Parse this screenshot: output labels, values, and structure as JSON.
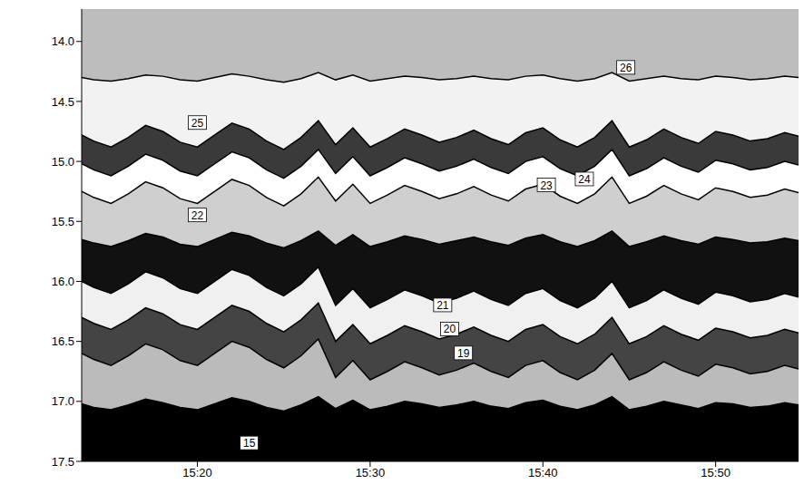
{
  "chart_data": {
    "type": "area",
    "x": [
      913.3,
      914,
      915,
      916,
      917,
      918,
      919,
      920,
      921,
      922,
      923,
      924,
      925,
      926,
      927,
      928,
      929,
      930,
      931,
      932,
      933,
      934,
      935,
      936,
      937,
      938,
      939,
      940,
      941,
      942,
      943,
      944,
      945,
      946,
      947,
      948,
      949,
      950,
      951,
      952,
      953,
      954,
      954.8
    ],
    "xlim": [
      913.3,
      954.8
    ],
    "xticks": [
      {
        "value": 920,
        "label": "15:20"
      },
      {
        "value": 930,
        "label": "15:30"
      },
      {
        "value": 940,
        "label": "15:40"
      },
      {
        "value": 950,
        "label": "15:50"
      }
    ],
    "ylim": [
      13.73,
      17.5
    ],
    "yticks": [
      {
        "value": 14,
        "label": "14.0"
      },
      14.5,
      {
        "value": 15,
        "label": "15.0"
      },
      15.5,
      {
        "value": 16,
        "label": "16.0"
      },
      16.5,
      {
        "value": 17,
        "label": "17.0"
      },
      17.5
    ],
    "series": [
      {
        "name": "26",
        "color": "#f2f2f2",
        "values": [
          14.3,
          14.32,
          14.33,
          14.31,
          14.28,
          14.29,
          14.32,
          14.33,
          14.3,
          14.27,
          14.29,
          14.32,
          14.34,
          14.31,
          14.26,
          14.32,
          14.28,
          14.33,
          14.31,
          14.29,
          14.3,
          14.32,
          14.31,
          14.29,
          14.31,
          14.32,
          14.29,
          14.28,
          14.31,
          14.33,
          14.31,
          14.26,
          14.33,
          14.31,
          14.29,
          14.31,
          14.32,
          14.29,
          14.3,
          14.32,
          14.31,
          14.29,
          14.3
        ]
      },
      {
        "name": "25",
        "color": "#3a3a3a",
        "values": [
          14.78,
          14.83,
          14.88,
          14.8,
          14.7,
          14.75,
          14.84,
          14.88,
          14.78,
          14.68,
          14.73,
          14.83,
          14.9,
          14.8,
          14.66,
          14.86,
          14.72,
          14.88,
          14.81,
          14.73,
          14.78,
          14.84,
          14.8,
          14.74,
          14.81,
          14.86,
          14.76,
          14.72,
          14.82,
          14.88,
          14.8,
          14.66,
          14.88,
          14.82,
          14.73,
          14.8,
          14.85,
          14.75,
          14.78,
          14.83,
          14.81,
          14.76,
          14.79
        ]
      },
      {
        "name": "24",
        "color": "#ffffff",
        "values": [
          15.02,
          15.07,
          15.12,
          15.04,
          14.94,
          14.99,
          15.08,
          15.12,
          15.02,
          14.92,
          14.97,
          15.07,
          15.14,
          15.04,
          14.9,
          15.1,
          14.96,
          15.12,
          15.05,
          14.97,
          15.02,
          15.08,
          15.04,
          14.98,
          15.05,
          15.1,
          15.0,
          14.96,
          15.06,
          15.12,
          15.04,
          14.9,
          15.12,
          15.06,
          14.97,
          15.04,
          15.09,
          14.99,
          15.02,
          15.07,
          15.05,
          15.0,
          15.03
        ]
      },
      {
        "name": "23",
        "color": "#cfcfcf",
        "values": [
          15.25,
          15.3,
          15.35,
          15.27,
          15.17,
          15.22,
          15.31,
          15.35,
          15.25,
          15.15,
          15.2,
          15.3,
          15.37,
          15.27,
          15.13,
          15.33,
          15.19,
          15.35,
          15.28,
          15.2,
          15.25,
          15.31,
          15.27,
          15.21,
          15.28,
          15.33,
          15.23,
          15.19,
          15.29,
          15.35,
          15.27,
          15.13,
          15.35,
          15.29,
          15.2,
          15.27,
          15.32,
          15.22,
          15.25,
          15.3,
          15.28,
          15.23,
          15.26
        ]
      },
      {
        "name": "22",
        "color": "#111111",
        "values": [
          15.65,
          15.68,
          15.71,
          15.66,
          15.6,
          15.63,
          15.69,
          15.71,
          15.65,
          15.59,
          15.62,
          15.68,
          15.72,
          15.66,
          15.58,
          15.7,
          15.61,
          15.71,
          15.67,
          15.62,
          15.65,
          15.69,
          15.66,
          15.63,
          15.67,
          15.7,
          15.64,
          15.61,
          15.67,
          15.71,
          15.66,
          15.58,
          15.71,
          15.67,
          15.62,
          15.66,
          15.69,
          15.63,
          15.65,
          15.68,
          15.67,
          15.64,
          15.66
        ]
      },
      {
        "name": "21",
        "color": "#f0f0f0",
        "values": [
          16.0,
          16.05,
          16.1,
          16.02,
          15.92,
          15.97,
          16.06,
          16.1,
          16.0,
          15.9,
          15.95,
          16.05,
          16.12,
          16.02,
          15.88,
          16.2,
          16.06,
          16.22,
          16.15,
          16.07,
          16.12,
          16.18,
          16.14,
          16.08,
          16.15,
          16.2,
          16.1,
          16.06,
          16.16,
          16.22,
          16.14,
          16.0,
          16.22,
          16.16,
          16.07,
          16.14,
          16.19,
          16.09,
          16.12,
          16.17,
          16.15,
          16.1,
          16.13
        ]
      },
      {
        "name": "20",
        "color": "#444444",
        "values": [
          16.3,
          16.35,
          16.4,
          16.32,
          16.22,
          16.27,
          16.36,
          16.4,
          16.3,
          16.2,
          16.25,
          16.35,
          16.42,
          16.32,
          16.18,
          16.5,
          16.36,
          16.52,
          16.45,
          16.37,
          16.42,
          16.48,
          16.44,
          16.38,
          16.45,
          16.5,
          16.4,
          16.36,
          16.46,
          16.52,
          16.44,
          16.3,
          16.52,
          16.46,
          16.37,
          16.44,
          16.49,
          16.39,
          16.42,
          16.47,
          16.45,
          16.4,
          16.43
        ]
      },
      {
        "name": "19",
        "color": "#bbbbbb",
        "values": [
          16.6,
          16.65,
          16.7,
          16.62,
          16.52,
          16.57,
          16.66,
          16.7,
          16.6,
          16.5,
          16.55,
          16.65,
          16.72,
          16.62,
          16.48,
          16.8,
          16.66,
          16.82,
          16.75,
          16.67,
          16.72,
          16.78,
          16.74,
          16.68,
          16.75,
          16.8,
          16.7,
          16.66,
          16.76,
          16.82,
          16.74,
          16.6,
          16.82,
          16.76,
          16.67,
          16.74,
          16.79,
          16.69,
          16.72,
          16.77,
          16.75,
          16.7,
          16.73
        ]
      },
      {
        "name": "15",
        "color": "#000000",
        "values": [
          17.02,
          17.05,
          17.07,
          17.03,
          16.98,
          17.01,
          17.05,
          17.07,
          17.02,
          16.97,
          17.0,
          17.05,
          17.08,
          17.03,
          16.96,
          17.06,
          16.99,
          17.07,
          17.04,
          17.0,
          17.02,
          17.05,
          17.03,
          17.0,
          17.04,
          17.06,
          17.01,
          16.99,
          17.04,
          17.07,
          17.03,
          16.96,
          17.07,
          17.04,
          17.0,
          17.03,
          17.06,
          17.01,
          17.02,
          17.05,
          17.04,
          17.01,
          17.03
        ]
      }
    ],
    "annotations": [
      {
        "text": "26",
        "x": 944.8,
        "y": 14.22
      },
      {
        "text": "25",
        "x": 920,
        "y": 14.68
      },
      {
        "text": "24",
        "x": 942.4,
        "y": 15.15
      },
      {
        "text": "23",
        "x": 940.2,
        "y": 15.2
      },
      {
        "text": "22",
        "x": 920,
        "y": 15.45
      },
      {
        "text": "21",
        "x": 934.2,
        "y": 16.2
      },
      {
        "text": "20",
        "x": 934.6,
        "y": 16.4
      },
      {
        "text": "19",
        "x": 935.4,
        "y": 16.6
      },
      {
        "text": "15",
        "x": 923,
        "y": 17.35
      }
    ]
  }
}
